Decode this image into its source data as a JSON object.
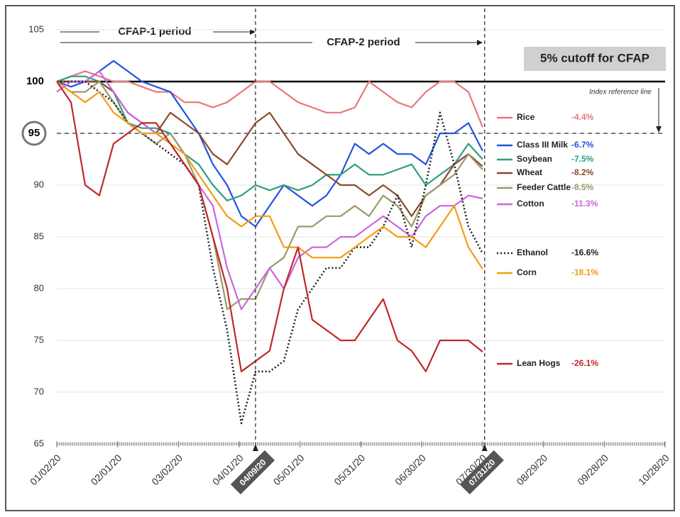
{
  "chart_data": {
    "type": "line",
    "annotations": {
      "cfap1": "CFAP-1 period",
      "cfap2": "CFAP-2 period",
      "cutoff": "5% cutoff for CFAP",
      "reference": "Index reference line"
    },
    "ref_line": 100,
    "cutoff_line": 95,
    "vlines": [
      "04/09/20",
      "07/31/20"
    ],
    "xlim": [
      "01/02/20",
      "10/28/20"
    ],
    "xticks": [
      "01/02/20",
      "02/01/20",
      "03/02/20",
      "04/01/20",
      "05/01/20",
      "05/31/20",
      "06/30/20",
      "07/30/20",
      "08/29/20",
      "09/28/20",
      "10/28/20"
    ],
    "ylim": [
      65,
      105
    ],
    "yticks": [
      65,
      70,
      75,
      80,
      85,
      90,
      95,
      100,
      105
    ],
    "grid": true,
    "x": [
      "01/02/20",
      "01/09/20",
      "01/16/20",
      "01/23/20",
      "01/30/20",
      "02/06/20",
      "02/13/20",
      "02/20/20",
      "02/27/20",
      "03/05/20",
      "03/12/20",
      "03/19/20",
      "03/26/20",
      "04/02/20",
      "04/09/20",
      "04/16/20",
      "04/23/20",
      "04/30/20",
      "05/07/20",
      "05/14/20",
      "05/21/20",
      "05/28/20",
      "06/04/20",
      "06/11/20",
      "06/18/20",
      "06/25/20",
      "07/02/20",
      "07/09/20",
      "07/16/20",
      "07/23/20",
      "07/30/20"
    ],
    "series": [
      {
        "name": "Rice",
        "change": "-4.4%",
        "color": "#e8777a",
        "dash": "solid",
        "values": [
          100,
          100.5,
          101,
          100.5,
          100,
          100,
          99.5,
          99,
          99,
          98,
          98,
          97.5,
          98,
          99,
          100,
          100,
          99,
          98,
          97.5,
          97,
          97,
          97.5,
          100,
          99,
          98,
          97.5,
          99,
          100,
          100,
          99,
          95.6
        ]
      },
      {
        "name": "Class III Milk",
        "change": "-6.7%",
        "color": "#2255dd",
        "dash": "solid",
        "values": [
          100,
          99.5,
          100,
          101,
          102,
          101,
          100,
          99.5,
          99,
          97,
          95,
          92,
          90,
          87,
          86,
          88,
          90,
          89,
          88,
          89,
          91,
          94,
          93,
          94,
          93,
          93,
          92,
          95,
          95,
          96,
          93.3
        ]
      },
      {
        "name": "Soybean",
        "change": "-7.5%",
        "color": "#2e9e7e",
        "dash": "solid",
        "values": [
          100,
          100.5,
          100.5,
          100,
          99,
          96,
          95.5,
          95.5,
          95,
          93,
          92,
          90,
          88.5,
          89,
          90,
          89.5,
          90,
          89.5,
          90,
          91,
          91,
          92,
          91,
          91,
          91.5,
          92,
          90,
          91,
          92,
          94,
          92.5
        ]
      },
      {
        "name": "Wheat",
        "change": "-8.2%",
        "color": "#8b4a2b",
        "dash": "solid",
        "values": [
          100,
          100,
          100,
          100,
          99,
          97,
          96,
          95,
          97,
          96,
          95,
          93,
          92,
          94,
          96,
          97,
          95,
          93,
          92,
          91,
          90,
          90,
          89,
          90,
          89,
          87,
          89,
          90,
          92,
          93,
          91.8
        ]
      },
      {
        "name": "Feeder Cattle",
        "change": "-8.5%",
        "color": "#9a9a6a",
        "dash": "solid",
        "values": [
          100,
          99,
          99,
          100,
          98,
          96,
          95,
          94,
          95,
          93,
          90,
          85,
          78,
          79,
          79,
          82,
          83,
          86,
          86,
          87,
          87,
          88,
          87,
          89,
          88,
          86,
          89,
          90,
          91,
          93,
          91.5
        ]
      },
      {
        "name": "Cotton",
        "change": "-11.3%",
        "color": "#cc66dd",
        "dash": "solid",
        "values": [
          99,
          100,
          100,
          101,
          99,
          97,
          96,
          95,
          94,
          92,
          90,
          88,
          82,
          78,
          80,
          82,
          80,
          83,
          84,
          84,
          85,
          85,
          86,
          87,
          86,
          85,
          87,
          88,
          88,
          89,
          88.7
        ]
      },
      {
        "name": "Ethanol",
        "change": "-16.6%",
        "color": "#222222",
        "dash": "dotted",
        "values": [
          100,
          100,
          100,
          99,
          98,
          96,
          95,
          94,
          93,
          92,
          90,
          82,
          76,
          67,
          72,
          72,
          73,
          78,
          80,
          82,
          82,
          84,
          84,
          86,
          89,
          84,
          90,
          97,
          92,
          86,
          83.4
        ]
      },
      {
        "name": "Corn",
        "change": "-18.1%",
        "color": "#f39c12",
        "dash": "solid",
        "values": [
          100,
          99,
          98,
          99,
          97,
          96,
          95,
          95,
          94,
          93,
          91,
          89,
          87,
          86,
          87,
          87,
          84,
          84,
          83,
          83,
          83,
          84,
          85,
          86,
          85,
          85,
          84,
          86,
          88,
          84,
          81.9
        ]
      },
      {
        "name": "Lean Hogs",
        "change": "-26.1%",
        "color": "#c0282a",
        "dash": "solid",
        "values": [
          100,
          98,
          90,
          89,
          94,
          95,
          96,
          96,
          94,
          92,
          90,
          85,
          80,
          72,
          73,
          74,
          80,
          84,
          77,
          76,
          75,
          75,
          77,
          79,
          75,
          74,
          72,
          75,
          75,
          75,
          73.9
        ]
      }
    ]
  }
}
